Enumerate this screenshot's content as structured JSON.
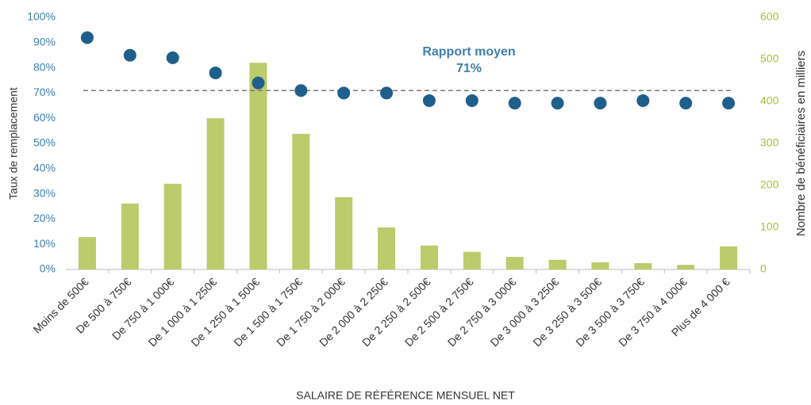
{
  "chart_data": {
    "type": "combo",
    "categories": [
      "Moins de 500€",
      "De 500 à 750€",
      "De 750 à 1 000€",
      "De 1 000 à 1 250€",
      "De 1 250 à 1 500€",
      "De 1 500 à 1 750€",
      "De 1 750 à 2 000€",
      "De 2 000 à 2 250€",
      "De 2 250 à 2 500€",
      "De 2 500 à 2 750€",
      "De 2 750 à 3 000€",
      "De 3 000 à 3 250€",
      "De 3 250 à 3 500€",
      "De 3 500 à 3 750€",
      "De 3 750 à 4 000€",
      "Plus de 4 000 €"
    ],
    "series": [
      {
        "type": "bar",
        "axis": "y2",
        "color": "#bccb6b",
        "values": [
          77,
          157,
          204,
          360,
          492,
          323,
          172,
          100,
          57,
          42,
          30,
          23,
          17,
          15,
          11,
          55
        ]
      },
      {
        "type": "scatter",
        "color": "#1f5f8b",
        "values": [
          92,
          85,
          84,
          78,
          74,
          71,
          70,
          70,
          67,
          67,
          66,
          66,
          66,
          67,
          66,
          66
        ]
      }
    ],
    "ylim": [
      0,
      100
    ],
    "yticks": [
      {
        "value": 0,
        "label": "0%"
      },
      {
        "value": 10,
        "label": "10%"
      },
      {
        "value": 20,
        "label": "20%"
      },
      {
        "value": 30,
        "label": "30%"
      },
      {
        "value": 40,
        "label": "40%"
      },
      {
        "value": 50,
        "label": "50%"
      },
      {
        "value": 60,
        "label": "60%"
      },
      {
        "value": 70,
        "label": "70%"
      },
      {
        "value": 80,
        "label": "80%"
      },
      {
        "value": 90,
        "label": "90%"
      },
      {
        "value": 100,
        "label": "100%"
      }
    ],
    "y2lim": [
      0,
      600
    ],
    "y2ticks": [
      0,
      100,
      200,
      300,
      400,
      500,
      600
    ],
    "ylabel": "Taux de remplacement",
    "y2label": "Nombre de bénéficiaires en milliers",
    "xlabel": "SALAIRE DE RÉFÉRENCE MENSUEL NET",
    "average_line": {
      "value": 71,
      "label": "71%",
      "text": "Rapport moyen"
    }
  }
}
